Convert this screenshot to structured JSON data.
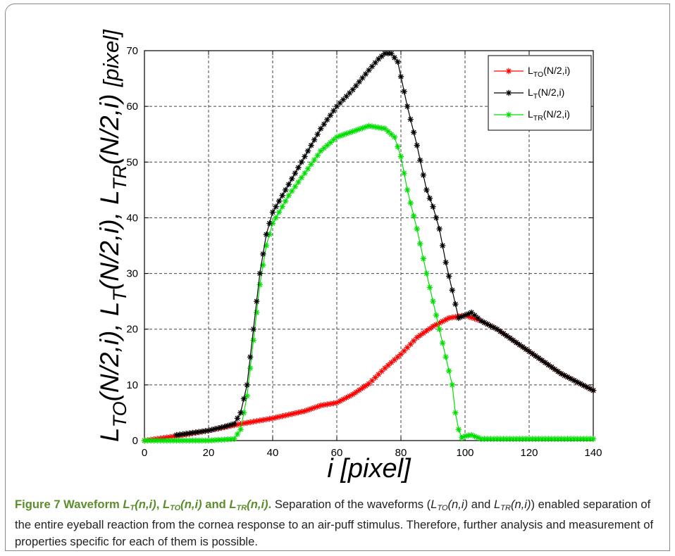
{
  "chart_data": {
    "type": "line",
    "title": "",
    "xlabel": "i [pixel]",
    "ylabel_parts": [
      {
        "t": "L",
        "style": "main"
      },
      {
        "t": "TO",
        "style": "sub"
      },
      {
        "t": "(N/2,i), ",
        "style": "main"
      },
      {
        "t": "L",
        "style": "main"
      },
      {
        "t": "T",
        "style": "sub"
      },
      {
        "t": "(N/2,i), ",
        "style": "main"
      },
      {
        "t": "L",
        "style": "main"
      },
      {
        "t": "TR",
        "style": "sub"
      },
      {
        "t": "(N/2,i)  ",
        "style": "main"
      },
      {
        "t": "[pixel]",
        "style": "small"
      }
    ],
    "xlim": [
      0,
      140
    ],
    "ylim": [
      0,
      70
    ],
    "xticks": [
      0,
      20,
      40,
      60,
      80,
      100,
      120,
      140
    ],
    "yticks": [
      0,
      10,
      20,
      30,
      40,
      50,
      60,
      70
    ],
    "grid": true,
    "legend_position": "top-right",
    "series": [
      {
        "name": "L_TO(N/2,i)",
        "legend_parts": [
          {
            "t": "L",
            "style": "main"
          },
          {
            "t": "TO",
            "style": "sub"
          },
          {
            "t": "(N/2,i)",
            "style": "main"
          }
        ],
        "color": "#ff0000",
        "marker": "star",
        "points": [
          [
            0,
            0
          ],
          [
            10,
            0.8
          ],
          [
            20,
            1.8
          ],
          [
            30,
            3.0
          ],
          [
            40,
            4.0
          ],
          [
            50,
            5.3
          ],
          [
            55,
            6.3
          ],
          [
            60,
            6.8
          ],
          [
            65,
            8.3
          ],
          [
            70,
            10.2
          ],
          [
            75,
            13.0
          ],
          [
            80,
            15.5
          ],
          [
            85,
            18.5
          ],
          [
            90,
            20.5
          ],
          [
            95,
            22.0
          ],
          [
            100,
            22.5
          ],
          [
            105,
            21.5
          ],
          [
            110,
            20.0
          ],
          [
            120,
            16.0
          ],
          [
            130,
            12.0
          ],
          [
            140,
            9.0
          ]
        ]
      },
      {
        "name": "L_T(N/2,i)",
        "legend_parts": [
          {
            "t": "L",
            "style": "main"
          },
          {
            "t": "T",
            "style": "sub"
          },
          {
            "t": "(N/2,i)",
            "style": "main"
          }
        ],
        "color": "#000000",
        "marker": "star",
        "points": [
          [
            10,
            1.0
          ],
          [
            20,
            1.8
          ],
          [
            25,
            2.5
          ],
          [
            28,
            3.0
          ],
          [
            30,
            5.0
          ],
          [
            32,
            10.0
          ],
          [
            34,
            20.0
          ],
          [
            36,
            30.0
          ],
          [
            38,
            37.0
          ],
          [
            40,
            41.0
          ],
          [
            45,
            46.0
          ],
          [
            50,
            51.0
          ],
          [
            55,
            56.0
          ],
          [
            60,
            60.0
          ],
          [
            65,
            63.0
          ],
          [
            70,
            66.5
          ],
          [
            73,
            68.5
          ],
          [
            75,
            69.5
          ],
          [
            77,
            69.5
          ],
          [
            79,
            68.0
          ],
          [
            82,
            60.0
          ],
          [
            85,
            53.0
          ],
          [
            88,
            45.0
          ],
          [
            90,
            42.0
          ],
          [
            92,
            38.0
          ],
          [
            94,
            32.0
          ],
          [
            96,
            27.0
          ],
          [
            98,
            22.0
          ],
          [
            100,
            22.5
          ],
          [
            102,
            23.0
          ],
          [
            105,
            21.5
          ],
          [
            110,
            20.0
          ],
          [
            120,
            16.0
          ],
          [
            130,
            12.0
          ],
          [
            140,
            9.0
          ]
        ]
      },
      {
        "name": "L_TR(N/2,i)",
        "legend_parts": [
          {
            "t": "L",
            "style": "main"
          },
          {
            "t": "TR",
            "style": "sub"
          },
          {
            "t": "(N/2,i)",
            "style": "main"
          }
        ],
        "color": "#00e000",
        "marker": "star",
        "points": [
          [
            0,
            0
          ],
          [
            10,
            0
          ],
          [
            20,
            0
          ],
          [
            28,
            0.3
          ],
          [
            30,
            2.0
          ],
          [
            32,
            8.0
          ],
          [
            34,
            18.0
          ],
          [
            36,
            28.0
          ],
          [
            38,
            35.0
          ],
          [
            40,
            39.0
          ],
          [
            45,
            44.0
          ],
          [
            50,
            48.0
          ],
          [
            55,
            52.0
          ],
          [
            60,
            54.5
          ],
          [
            65,
            55.5
          ],
          [
            70,
            56.5
          ],
          [
            75,
            56.0
          ],
          [
            78,
            54.5
          ],
          [
            80,
            51.0
          ],
          [
            82,
            45.0
          ],
          [
            85,
            38.0
          ],
          [
            88,
            30.0
          ],
          [
            90,
            25.0
          ],
          [
            92,
            20.0
          ],
          [
            94,
            15.0
          ],
          [
            96,
            10.0
          ],
          [
            97,
            5.0
          ],
          [
            98,
            2.0
          ],
          [
            99,
            0.5
          ],
          [
            100,
            0.8
          ],
          [
            102,
            1.0
          ],
          [
            105,
            0.3
          ],
          [
            110,
            0.3
          ],
          [
            120,
            0.3
          ],
          [
            130,
            0.3
          ],
          [
            140,
            0.3
          ]
        ]
      }
    ]
  },
  "caption": {
    "label": "Figure 7",
    "title_intro": "Waveform",
    "title_after": ".",
    "sep_and_1": ",",
    "sep_and_2": "and",
    "wf1_base": "L",
    "wf1_sub": "T",
    "wf1_args": "(n,i)",
    "wf2_base": "L",
    "wf2_sub": "TO",
    "wf2_args": "(n,i)",
    "wf3_base": "L",
    "wf3_sub": "TR",
    "wf3_args": "(n,i)",
    "text_1": "Separation of the waveforms (",
    "text_and": "and",
    "text_2": ") enabled separation of the entire eyeball reaction from the cornea response to an air-puff stimulus. Therefore, further analysis and measurement of properties specific for each of them is possible."
  }
}
